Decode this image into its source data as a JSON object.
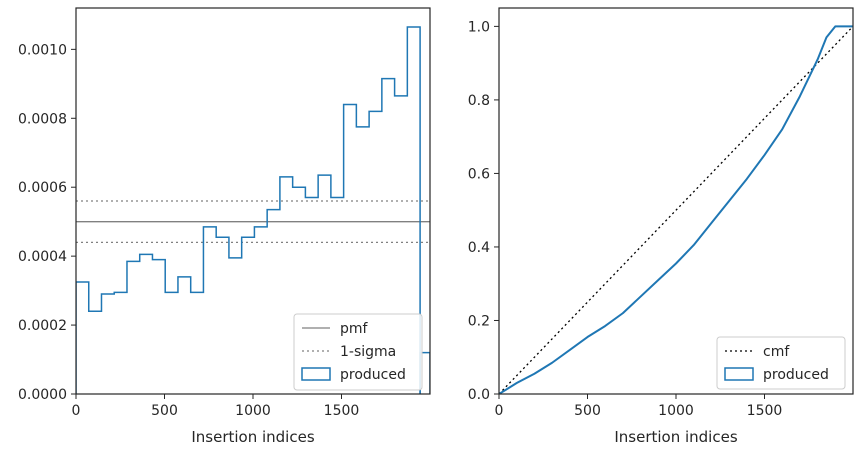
{
  "chart_data": [
    {
      "type": "step-histogram",
      "xlabel": "Insertion indices",
      "ylabel": "",
      "xlim": [
        0,
        2000
      ],
      "ylim": [
        0,
        0.00112
      ],
      "x_ticks": [
        0,
        500,
        1000,
        1500
      ],
      "x_tick_labels": [
        "0",
        "500",
        "1000",
        "1500"
      ],
      "y_ticks": [
        0,
        0.0002,
        0.0004,
        0.0006,
        0.0008,
        0.001
      ],
      "y_tick_labels": [
        "0.0000",
        "0.0002",
        "0.0004",
        "0.0006",
        "0.0008",
        "0.0010"
      ],
      "grid": false,
      "legend_position": "lower-right",
      "legend": [
        {
          "label": "pmf",
          "style": "solid",
          "color": "#808080"
        },
        {
          "label": "1-sigma",
          "style": "dotted",
          "color": "#808080"
        },
        {
          "label": "produced",
          "style": "step",
          "color": "#1f77b4"
        }
      ],
      "reference_lines": {
        "pmf": 0.0005,
        "sigma_upper": 0.00056,
        "sigma_lower": 0.00044
      },
      "bin_width": 72,
      "bin_edges_start": 0,
      "series": [
        {
          "name": "produced",
          "values": [
            0.000325,
            0.00024,
            0.00029,
            0.000295,
            0.000385,
            0.000405,
            0.00039,
            0.000295,
            0.00034,
            0.000295,
            0.000485,
            0.000455,
            0.000395,
            0.000455,
            0.000485,
            0.000535,
            0.00063,
            0.0006,
            0.00057,
            0.000635,
            0.00057,
            0.00084,
            0.000775,
            0.00082,
            0.000915,
            0.000865,
            0.001065
          ]
        }
      ],
      "final_bar": {
        "x_start": 1944,
        "x_end": 2000,
        "value": 0.00012
      }
    },
    {
      "type": "line",
      "xlabel": "Insertion indices",
      "ylabel": "",
      "xlim": [
        0,
        2000
      ],
      "ylim": [
        0,
        1.05
      ],
      "x_ticks": [
        0,
        500,
        1000,
        1500
      ],
      "x_tick_labels": [
        "0",
        "500",
        "1000",
        "1500"
      ],
      "y_ticks": [
        0,
        0.2,
        0.4,
        0.6,
        0.8,
        1.0
      ],
      "y_tick_labels": [
        "0.0",
        "0.2",
        "0.4",
        "0.6",
        "0.8",
        "1.0"
      ],
      "grid": false,
      "legend_position": "lower-right",
      "legend": [
        {
          "label": "cmf",
          "style": "dotted",
          "color": "#000000"
        },
        {
          "label": "produced",
          "style": "step",
          "color": "#1f77b4"
        }
      ],
      "series": [
        {
          "name": "cmf",
          "x": [
            0,
            2000
          ],
          "y": [
            0,
            1.0
          ]
        },
        {
          "name": "produced",
          "x": [
            0,
            100,
            200,
            300,
            400,
            500,
            600,
            700,
            800,
            900,
            1000,
            1100,
            1200,
            1300,
            1400,
            1500,
            1600,
            1700,
            1800,
            1850,
            1900,
            2000
          ],
          "y": [
            0,
            0.03,
            0.055,
            0.085,
            0.12,
            0.155,
            0.185,
            0.22,
            0.265,
            0.31,
            0.355,
            0.405,
            0.465,
            0.525,
            0.585,
            0.65,
            0.72,
            0.81,
            0.91,
            0.97,
            1.0,
            1.0
          ]
        }
      ]
    }
  ]
}
